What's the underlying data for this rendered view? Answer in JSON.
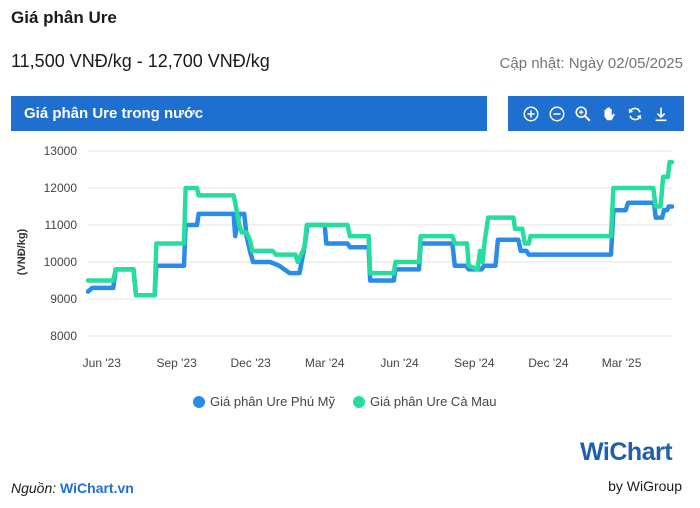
{
  "header": {
    "title": "Giá phân Ure",
    "price_range": "11,500 VNĐ/kg - 12,700 VNĐ/kg",
    "updated": "Cập nhật: Ngày 02/05/2025"
  },
  "banner": {
    "title": "Giá phân Ure trong nước"
  },
  "toolbar": {
    "icons": [
      "zoom-in-icon",
      "zoom-out-icon",
      "magnifier-icon",
      "pan-hand-icon",
      "reset-icon",
      "download-icon"
    ],
    "color": "#1f6fd1"
  },
  "footer": {
    "source_label": "Nguồn:",
    "source_link": "WiChart.vn",
    "logo_text": "WiChart",
    "logo_byline": "by WiGroup"
  },
  "chart_data": {
    "type": "line",
    "ylabel": "(VNĐ/kg)",
    "ylim": [
      8000,
      13000
    ],
    "yticks": [
      8000,
      9000,
      10000,
      11000,
      12000,
      13000
    ],
    "xlim": [
      "2023-05-15",
      "2025-05-02"
    ],
    "xticks": [
      {
        "date": "2023-06-01",
        "label": "Jun '23"
      },
      {
        "date": "2023-09-01",
        "label": "Sep '23"
      },
      {
        "date": "2023-12-01",
        "label": "Dec '23"
      },
      {
        "date": "2024-03-01",
        "label": "Mar '24"
      },
      {
        "date": "2024-06-01",
        "label": "Jun '24"
      },
      {
        "date": "2024-09-01",
        "label": "Sep '24"
      },
      {
        "date": "2024-12-01",
        "label": "Dec '24"
      },
      {
        "date": "2025-03-01",
        "label": "Mar '25"
      }
    ],
    "grid": true,
    "legend": "bottom",
    "series": [
      {
        "name": "Giá phân Ure Phú Mỹ",
        "color": "#2a8be8",
        "points": [
          [
            "2023-05-15",
            9200
          ],
          [
            "2023-05-20",
            9300
          ],
          [
            "2023-06-15",
            9300
          ],
          [
            "2023-06-18",
            9800
          ],
          [
            "2023-07-10",
            9800
          ],
          [
            "2023-07-13",
            9100
          ],
          [
            "2023-08-05",
            9100
          ],
          [
            "2023-08-07",
            9900
          ],
          [
            "2023-09-10",
            9900
          ],
          [
            "2023-09-12",
            11000
          ],
          [
            "2023-09-26",
            11000
          ],
          [
            "2023-09-28",
            11300
          ],
          [
            "2023-11-10",
            11300
          ],
          [
            "2023-11-12",
            10700
          ],
          [
            "2023-11-17",
            11300
          ],
          [
            "2023-11-23",
            11300
          ],
          [
            "2023-11-26",
            10700
          ],
          [
            "2023-11-30",
            10300
          ],
          [
            "2023-12-04",
            10000
          ],
          [
            "2023-12-25",
            10000
          ],
          [
            "2024-01-05",
            9900
          ],
          [
            "2024-01-18",
            9700
          ],
          [
            "2024-01-30",
            9700
          ],
          [
            "2024-02-05",
            10400
          ],
          [
            "2024-02-09",
            11000
          ],
          [
            "2024-03-01",
            11000
          ],
          [
            "2024-03-03",
            10500
          ],
          [
            "2024-03-29",
            10500
          ],
          [
            "2024-04-01",
            10400
          ],
          [
            "2024-04-24",
            10400
          ],
          [
            "2024-04-26",
            9500
          ],
          [
            "2024-05-25",
            9500
          ],
          [
            "2024-05-27",
            9800
          ],
          [
            "2024-06-25",
            9800
          ],
          [
            "2024-06-27",
            10500
          ],
          [
            "2024-08-05",
            10500
          ],
          [
            "2024-08-08",
            9900
          ],
          [
            "2024-08-22",
            9900
          ],
          [
            "2024-08-25",
            9800
          ],
          [
            "2024-09-10",
            9800
          ],
          [
            "2024-09-13",
            9900
          ],
          [
            "2024-09-27",
            9900
          ],
          [
            "2024-09-30",
            10600
          ],
          [
            "2024-10-25",
            10600
          ],
          [
            "2024-10-28",
            10300
          ],
          [
            "2024-11-04",
            10300
          ],
          [
            "2024-11-07",
            10200
          ],
          [
            "2025-02-16",
            10200
          ],
          [
            "2025-02-19",
            11400
          ],
          [
            "2025-03-06",
            11400
          ],
          [
            "2025-03-09",
            11600
          ],
          [
            "2025-04-10",
            11600
          ],
          [
            "2025-04-12",
            11200
          ],
          [
            "2025-04-20",
            11200
          ],
          [
            "2025-04-22",
            11400
          ],
          [
            "2025-04-26",
            11400
          ],
          [
            "2025-04-28",
            11500
          ],
          [
            "2025-05-02",
            11500
          ]
        ]
      },
      {
        "name": "Giá phân Ure Cà Mau",
        "color": "#27dd9d",
        "points": [
          [
            "2023-05-15",
            9500
          ],
          [
            "2023-06-15",
            9500
          ],
          [
            "2023-06-18",
            9800
          ],
          [
            "2023-07-10",
            9800
          ],
          [
            "2023-07-13",
            9100
          ],
          [
            "2023-08-05",
            9100
          ],
          [
            "2023-08-07",
            10500
          ],
          [
            "2023-09-10",
            10500
          ],
          [
            "2023-09-12",
            12000
          ],
          [
            "2023-09-26",
            12000
          ],
          [
            "2023-09-28",
            11800
          ],
          [
            "2023-11-10",
            11800
          ],
          [
            "2023-11-12",
            11600
          ],
          [
            "2023-11-17",
            11000
          ],
          [
            "2023-11-20",
            10800
          ],
          [
            "2023-11-26",
            10800
          ],
          [
            "2023-11-30",
            10600
          ],
          [
            "2023-12-03",
            10300
          ],
          [
            "2023-12-28",
            10300
          ],
          [
            "2024-01-01",
            10200
          ],
          [
            "2024-01-25",
            10200
          ],
          [
            "2024-01-28",
            10000
          ],
          [
            "2024-02-05",
            10400
          ],
          [
            "2024-02-08",
            11000
          ],
          [
            "2024-03-29",
            11000
          ],
          [
            "2024-04-01",
            10700
          ],
          [
            "2024-04-24",
            10700
          ],
          [
            "2024-04-26",
            9700
          ],
          [
            "2024-05-25",
            9700
          ],
          [
            "2024-05-27",
            10000
          ],
          [
            "2024-06-25",
            10000
          ],
          [
            "2024-06-27",
            10700
          ],
          [
            "2024-08-05",
            10700
          ],
          [
            "2024-08-08",
            10500
          ],
          [
            "2024-08-23",
            10500
          ],
          [
            "2024-08-25",
            9900
          ],
          [
            "2024-09-05",
            9800
          ],
          [
            "2024-09-08",
            10300
          ],
          [
            "2024-09-11",
            10000
          ],
          [
            "2024-09-14",
            10600
          ],
          [
            "2024-09-18",
            11200
          ],
          [
            "2024-10-19",
            11200
          ],
          [
            "2024-10-21",
            10900
          ],
          [
            "2024-10-30",
            10900
          ],
          [
            "2024-11-02",
            10500
          ],
          [
            "2024-11-07",
            10500
          ],
          [
            "2024-11-09",
            10700
          ],
          [
            "2025-02-16",
            10700
          ],
          [
            "2025-02-19",
            12000
          ],
          [
            "2025-04-09",
            12000
          ],
          [
            "2025-04-12",
            11500
          ],
          [
            "2025-04-18",
            11500
          ],
          [
            "2025-04-21",
            12300
          ],
          [
            "2025-04-27",
            12300
          ],
          [
            "2025-04-29",
            12700
          ],
          [
            "2025-05-02",
            12700
          ]
        ]
      }
    ]
  }
}
